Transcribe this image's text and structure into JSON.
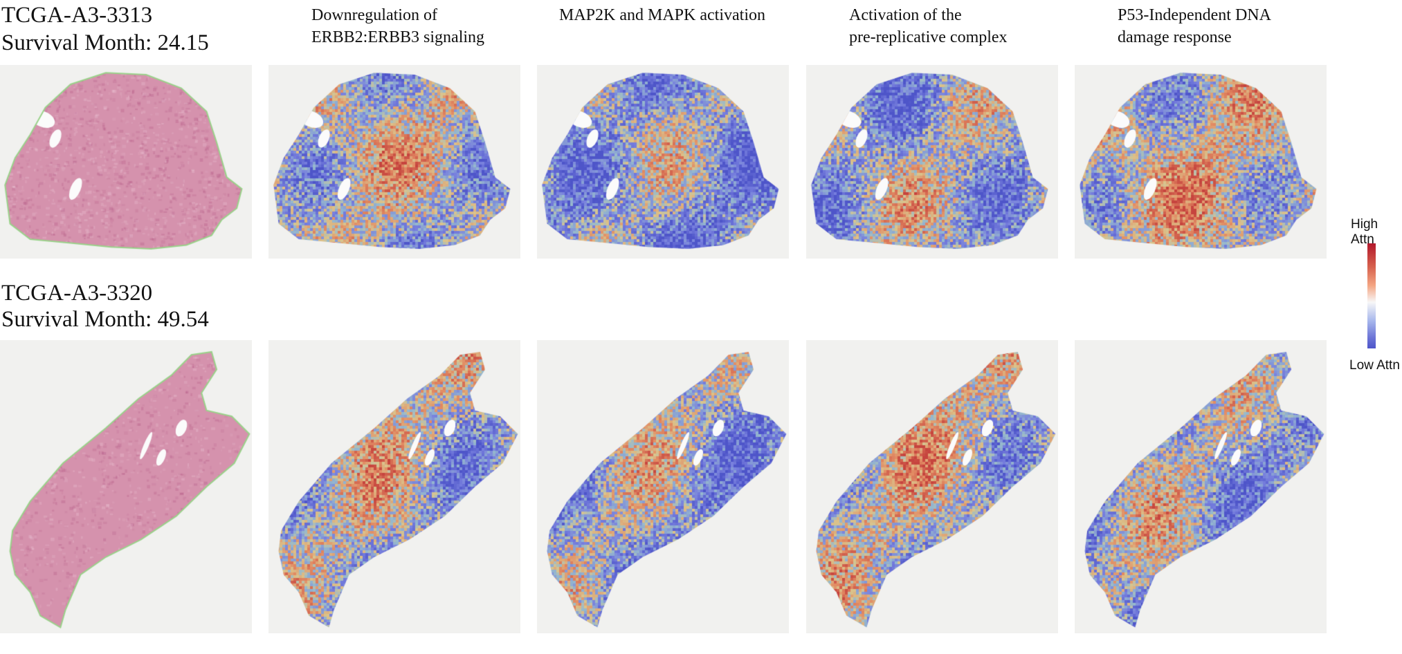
{
  "rows": [
    {
      "case_id": "TCGA-A3-3313",
      "survival": "Survival Month: 24.15"
    },
    {
      "case_id": "TCGA-A3-3320",
      "survival": "Survival Month: 49.54"
    }
  ],
  "columns": [
    {
      "title_line1": "Downregulation of",
      "title_line2": "ERBB2:ERBB3 signaling"
    },
    {
      "title_line1": "MAP2K and MAPK activation",
      "title_line2": ""
    },
    {
      "title_line1": "Activation of the",
      "title_line2": "pre-replicative complex"
    },
    {
      "title_line1": "P53-Independent DNA",
      "title_line2": "damage response"
    }
  ],
  "legend": {
    "high_label": "High Attn",
    "low_label": "Low Attn",
    "colors": {
      "high": "#b2182b",
      "mid": "#f7f7f7",
      "low": "#4e55c9"
    }
  },
  "colors": {
    "he_stain": "#d592ad",
    "tissue_outline": "#9ad28a",
    "background": "#f1f1ef"
  }
}
